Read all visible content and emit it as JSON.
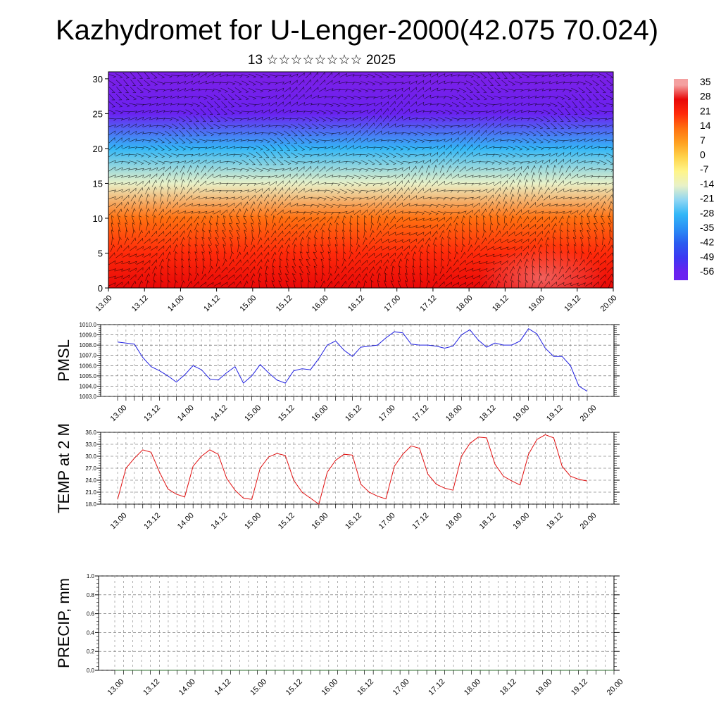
{
  "header": {
    "title": "Kazhydromet for U-Lenger-2000(42.075 70.024)",
    "date_line": "13 ☆☆☆☆☆☆☆☆ 2025"
  },
  "time_labels": [
    "13.00",
    "13.12",
    "14.00",
    "14.12",
    "15.00",
    "15.12",
    "16.00",
    "16.12",
    "17.00",
    "17.12",
    "18.00",
    "18.12",
    "19.00",
    "19.12",
    "20.00"
  ],
  "colorbar": {
    "labels": [
      "35",
      "28",
      "21",
      "14",
      "7",
      "0",
      "-7",
      "-14",
      "-21",
      "-28",
      "-35",
      "-42",
      "-49",
      "-56"
    ]
  },
  "chart_data": [
    {
      "type": "heatmap",
      "panel": "cross-section",
      "x": [
        "13.00",
        "13.12",
        "14.00",
        "14.12",
        "15.00",
        "15.12",
        "16.00",
        "16.12",
        "17.00",
        "17.12",
        "18.00",
        "18.12",
        "19.00",
        "19.12",
        "20.00"
      ],
      "ylim": [
        0,
        31
      ],
      "yticks": [
        0,
        5,
        10,
        15,
        20,
        25,
        30
      ],
      "colorbar_levels": [
        35,
        28,
        21,
        14,
        7,
        0,
        -7,
        -14,
        -21,
        -28,
        -35,
        -42,
        -49,
        -56
      ],
      "vertical_profile": [
        {
          "height": 0,
          "value": 28
        },
        {
          "height": 5,
          "value": 24
        },
        {
          "height": 10,
          "value": 12
        },
        {
          "height": 15,
          "value": -12
        },
        {
          "height": 20,
          "value": -30
        },
        {
          "height": 25,
          "value": -56
        },
        {
          "height": 30,
          "value": -58
        }
      ],
      "overlay": "wind barbs"
    },
    {
      "type": "line",
      "panel": "pmsl",
      "ylabel": "PMSL",
      "ylim": [
        1003.0,
        1010.0
      ],
      "yticks": [
        "1003.0",
        "1004.0",
        "1005.0",
        "1006.0",
        "1007.0",
        "1008.0",
        "1009.0",
        "1010.0"
      ],
      "x_step_hours": 3,
      "series": [
        {
          "color": "#1f1fe0",
          "values": [
            1008.3,
            1008.2,
            1008.1,
            1006.8,
            1005.9,
            1005.5,
            1005.0,
            1004.4,
            1005.1,
            1006.0,
            1005.6,
            1004.7,
            1004.6,
            1005.3,
            1005.9,
            1004.3,
            1005.0,
            1006.1,
            1005.3,
            1004.6,
            1004.3,
            1005.5,
            1005.7,
            1005.6,
            1006.7,
            1008.0,
            1008.4,
            1007.5,
            1006.9,
            1007.8,
            1007.9,
            1008.0,
            1008.7,
            1009.3,
            1009.2,
            1008.1,
            1008.0,
            1008.0,
            1007.9,
            1007.7,
            1007.9,
            1009.0,
            1009.5,
            1008.5,
            1007.8,
            1008.2,
            1008.0,
            1008.0,
            1008.4,
            1009.6,
            1009.1,
            1007.7,
            1006.9,
            1006.9,
            1006.0,
            1004.0,
            1003.5
          ]
        }
      ]
    },
    {
      "type": "line",
      "panel": "temp",
      "ylabel": "TEMP at 2 M",
      "ylim": [
        18.0,
        36.0
      ],
      "yticks": [
        "18.0",
        "21.0",
        "24.0",
        "27.0",
        "30.0",
        "33.0",
        "36.0"
      ],
      "x_step_hours": 3,
      "series": [
        {
          "color": "#e01010",
          "values": [
            19.2,
            27.0,
            29.5,
            31.6,
            31.0,
            26.0,
            21.8,
            20.5,
            19.8,
            27.5,
            30.0,
            31.6,
            30.5,
            24.5,
            21.5,
            19.5,
            19.2,
            27.0,
            29.8,
            30.7,
            30.2,
            24.0,
            21.0,
            19.5,
            18.0,
            26.0,
            29.0,
            30.5,
            30.3,
            23.0,
            21.0,
            20.0,
            19.3,
            27.5,
            30.5,
            32.6,
            32.0,
            25.5,
            23.0,
            22.0,
            21.5,
            30.0,
            33.2,
            34.8,
            34.6,
            28.0,
            25.0,
            23.8,
            22.8,
            30.5,
            34.2,
            35.4,
            34.6,
            27.5,
            25.0,
            24.2,
            23.8
          ]
        }
      ]
    },
    {
      "type": "line",
      "panel": "precip",
      "ylabel": "PRECIP, mm",
      "ylim": [
        0.0,
        1.0
      ],
      "yticks": [
        "0.0",
        "0.2",
        "0.4",
        "0.6",
        "0.8",
        "1.0"
      ],
      "x_step_hours": 3,
      "series": [
        {
          "color": "#2e6e2e",
          "values": [
            0,
            0,
            0,
            0,
            0,
            0,
            0,
            0,
            0,
            0,
            0,
            0,
            0,
            0,
            0,
            0,
            0,
            0,
            0,
            0,
            0,
            0,
            0,
            0,
            0,
            0,
            0,
            0,
            0,
            0,
            0,
            0,
            0,
            0,
            0,
            0,
            0,
            0,
            0,
            0,
            0,
            0,
            0,
            0,
            0,
            0,
            0,
            0,
            0,
            0,
            0,
            0,
            0,
            0,
            0,
            0,
            0
          ]
        }
      ]
    }
  ]
}
